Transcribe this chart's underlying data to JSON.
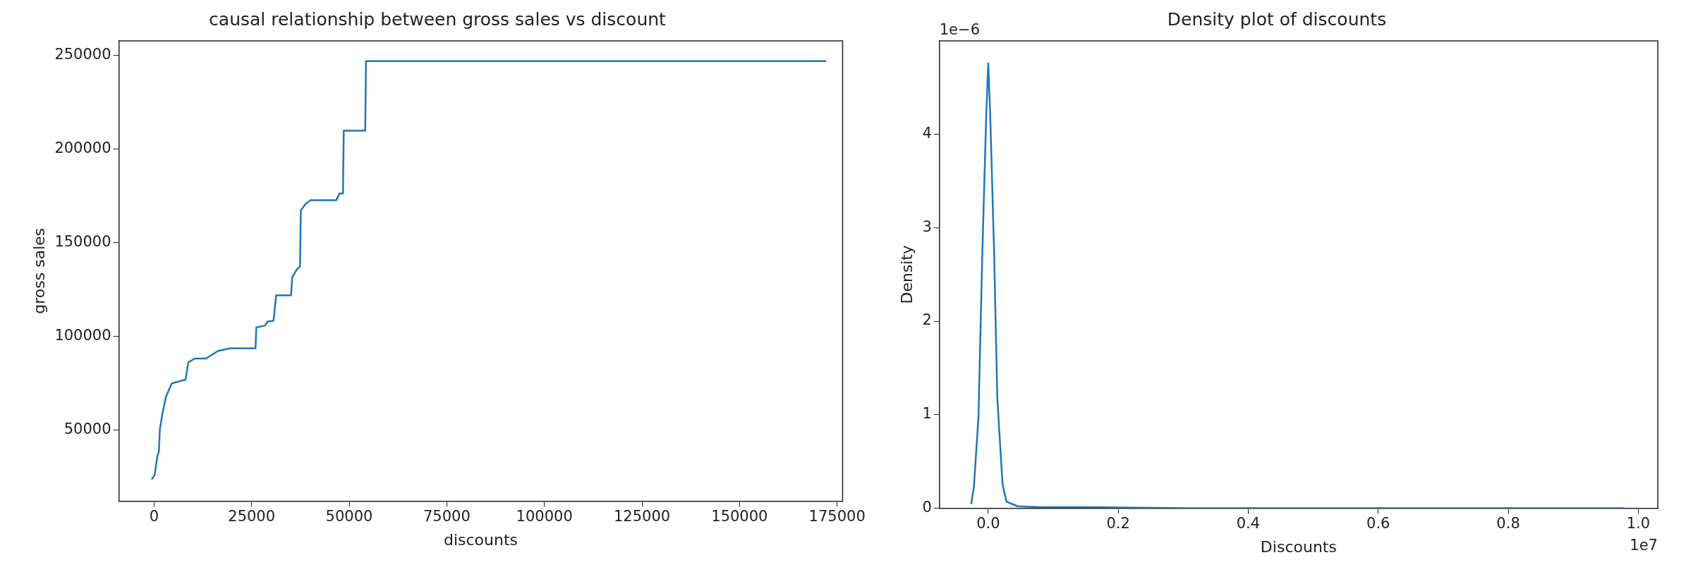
{
  "chart_data": [
    {
      "type": "line",
      "title": "causal relationship between gross sales vs discount",
      "xlabel": "discounts",
      "ylabel": "gross sales",
      "marker": "none",
      "grid": false,
      "legend": false,
      "xlim": [
        -9000,
        176400
      ],
      "ylim": [
        12200,
        257800
      ],
      "xticks": [
        0,
        25000,
        50000,
        75000,
        100000,
        125000,
        150000,
        175000
      ],
      "yticks": [
        50000,
        100000,
        150000,
        200000,
        250000
      ],
      "series": [
        {
          "color": "#1f77b4",
          "x": [
            -500,
            175,
            877,
            1230,
            1490,
            2190,
            3070,
            4560,
            8070,
            8770,
            10500,
            13300,
            16400,
            19500,
            26000,
            26200,
            28400,
            29100,
            30600,
            31300,
            35100,
            35400,
            36600,
            37400,
            37600,
            38800,
            40100,
            46700,
            47500,
            48400,
            48600,
            54100,
            54300,
            172000
          ],
          "values": [
            24100,
            26200,
            36600,
            38300,
            50500,
            59300,
            68000,
            75000,
            77000,
            86200,
            88300,
            88300,
            92300,
            93700,
            93700,
            104900,
            105800,
            108000,
            108400,
            122000,
            122000,
            131600,
            135900,
            137300,
            167300,
            170700,
            172800,
            172800,
            176300,
            176300,
            209900,
            209900,
            247000,
            247000
          ]
        }
      ]
    },
    {
      "type": "line",
      "title": "Density plot of discounts",
      "xlabel": "Discounts",
      "ylabel": "Density",
      "marker": "none",
      "grid": false,
      "legend": false,
      "annotations": [
        "1e−6",
        "1e7"
      ],
      "xlim": [
        -0.075,
        1.03
      ],
      "ylim": [
        0,
        5
      ],
      "xticks": [
        {
          "value": 0,
          "label": "0.0"
        },
        0.2,
        0.4,
        0.6,
        0.8,
        {
          "value": 1,
          "label": "1.0"
        }
      ],
      "yticks": [
        0,
        1,
        2,
        3,
        4
      ],
      "series": [
        {
          "color": "#1f77b4",
          "x": [
            -0.026,
            -0.022,
            -0.015,
            -0.009,
            -0.003,
            0,
            0.003,
            0.009,
            0.014,
            0.022,
            0.028,
            0.045,
            0.079,
            0.15,
            0.3,
            0.978
          ],
          "values": [
            0.05,
            0.23,
            0.98,
            2.75,
            4.22,
            4.76,
            4.22,
            2.75,
            1.17,
            0.26,
            0.07,
            0.02,
            0.01,
            0.01,
            0,
            0
          ]
        }
      ]
    }
  ]
}
